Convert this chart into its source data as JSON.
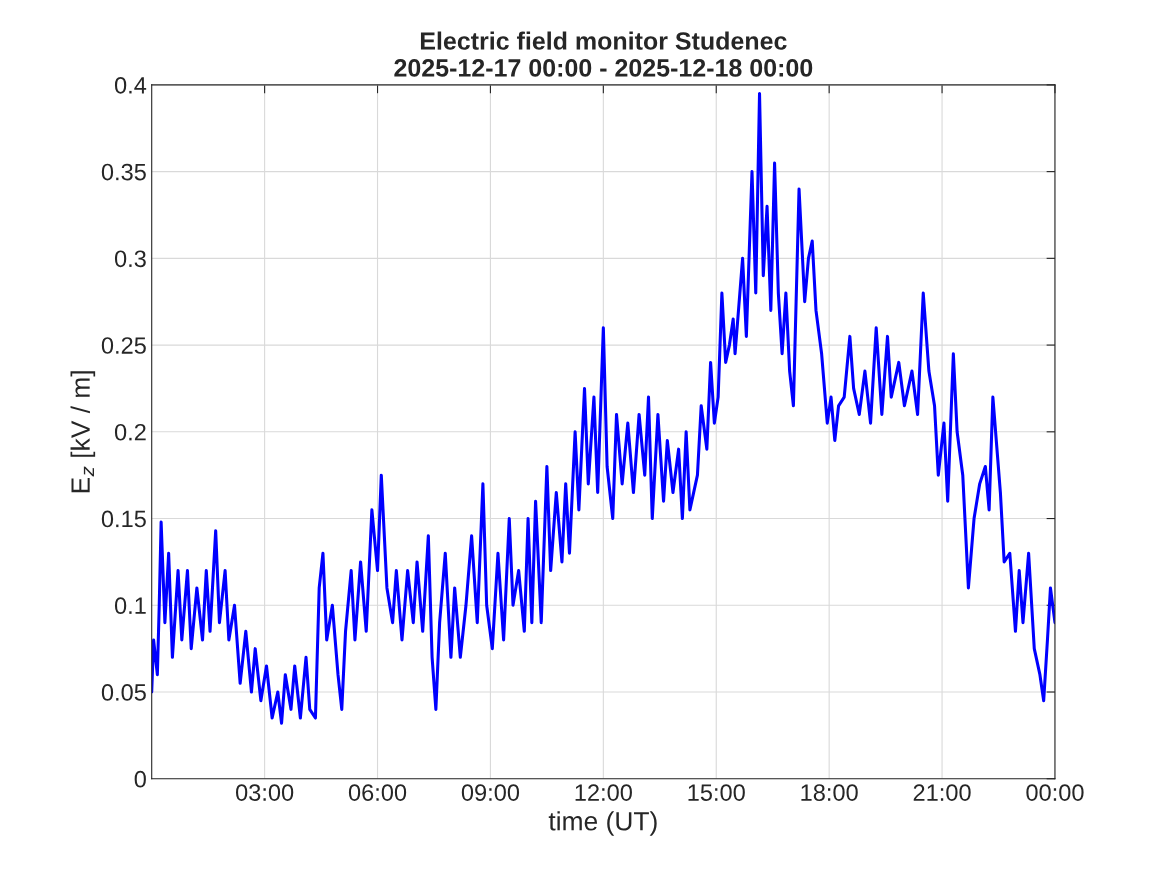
{
  "chart_data": {
    "type": "line",
    "title": "Electric field monitor Studenec\n2025-12-17 00:00 - 2025-12-18 00:00",
    "xlabel": "time (UT)",
    "ylabel": "E$_{z}$ [kV / m]",
    "xlim": [
      0,
      24
    ],
    "xticks": [
      {
        "value": 3,
        "label": "03:00"
      },
      {
        "value": 6,
        "label": "06:00"
      },
      {
        "value": 9,
        "label": "09:00"
      },
      {
        "value": 12,
        "label": "12:00"
      },
      {
        "value": 15,
        "label": "15:00"
      },
      {
        "value": 18,
        "label": "18:00"
      },
      {
        "value": 21,
        "label": "21:00"
      },
      {
        "value": 24,
        "label": "00:00"
      }
    ],
    "ylim": [
      0,
      0.4
    ],
    "yticks": [
      0,
      0.05,
      0.1,
      0.15,
      0.2,
      0.25,
      0.3,
      0.35,
      0.4
    ],
    "grid": true,
    "series": [
      {
        "color": "#0000ff",
        "x": [
          0.0,
          0.05,
          0.15,
          0.2,
          0.25,
          0.35,
          0.45,
          0.55,
          0.7,
          0.8,
          0.95,
          1.05,
          1.2,
          1.35,
          1.45,
          1.55,
          1.7,
          1.8,
          1.95,
          2.05,
          2.2,
          2.35,
          2.5,
          2.65,
          2.75,
          2.9,
          3.05,
          3.2,
          3.35,
          3.45,
          3.55,
          3.7,
          3.8,
          3.95,
          4.1,
          4.2,
          4.35,
          4.45,
          4.55,
          4.65,
          4.8,
          4.95,
          5.05,
          5.15,
          5.3,
          5.4,
          5.55,
          5.7,
          5.85,
          6.0,
          6.1,
          6.25,
          6.4,
          6.5,
          6.65,
          6.8,
          6.95,
          7.05,
          7.2,
          7.35,
          7.45,
          7.55,
          7.65,
          7.8,
          7.95,
          8.05,
          8.2,
          8.35,
          8.5,
          8.65,
          8.8,
          8.9,
          9.05,
          9.2,
          9.35,
          9.5,
          9.6,
          9.75,
          9.9,
          10.0,
          10.1,
          10.2,
          10.35,
          10.5,
          10.6,
          10.75,
          10.9,
          11.0,
          11.1,
          11.25,
          11.35,
          11.5,
          11.6,
          11.75,
          11.85,
          12.0,
          12.1,
          12.25,
          12.35,
          12.5,
          12.65,
          12.8,
          12.95,
          13.1,
          13.2,
          13.3,
          13.45,
          13.6,
          13.7,
          13.85,
          14.0,
          14.1,
          14.2,
          14.3,
          14.5,
          14.6,
          14.75,
          14.85,
          14.95,
          15.05,
          15.15,
          15.25,
          15.35,
          15.45,
          15.5,
          15.7,
          15.8,
          15.95,
          16.05,
          16.15,
          16.25,
          16.35,
          16.45,
          16.55,
          16.65,
          16.75,
          16.85,
          16.95,
          17.05,
          17.2,
          17.35,
          17.45,
          17.55,
          17.65,
          17.8,
          17.95,
          18.05,
          18.15,
          18.25,
          18.4,
          18.55,
          18.65,
          18.8,
          18.95,
          19.1,
          19.25,
          19.4,
          19.55,
          19.65,
          19.85,
          20.0,
          20.2,
          20.35,
          20.5,
          20.65,
          20.8,
          20.9,
          21.05,
          21.15,
          21.3,
          21.4,
          21.55,
          21.7,
          21.85,
          22.0,
          22.15,
          22.25,
          22.35,
          22.55,
          22.65,
          22.8,
          22.95,
          23.05,
          23.15,
          23.3,
          23.45,
          23.6,
          23.7,
          23.8,
          23.88,
          24.0
        ],
        "values": [
          0.05,
          0.08,
          0.06,
          0.1,
          0.148,
          0.09,
          0.13,
          0.07,
          0.12,
          0.08,
          0.12,
          0.075,
          0.11,
          0.08,
          0.12,
          0.085,
          0.143,
          0.09,
          0.12,
          0.08,
          0.1,
          0.055,
          0.085,
          0.05,
          0.075,
          0.045,
          0.065,
          0.035,
          0.05,
          0.032,
          0.06,
          0.04,
          0.065,
          0.035,
          0.07,
          0.04,
          0.035,
          0.11,
          0.13,
          0.08,
          0.1,
          0.06,
          0.04,
          0.085,
          0.12,
          0.08,
          0.125,
          0.085,
          0.155,
          0.12,
          0.175,
          0.11,
          0.09,
          0.12,
          0.08,
          0.12,
          0.09,
          0.125,
          0.085,
          0.14,
          0.07,
          0.04,
          0.09,
          0.13,
          0.07,
          0.11,
          0.07,
          0.1,
          0.14,
          0.09,
          0.17,
          0.1,
          0.075,
          0.13,
          0.08,
          0.15,
          0.1,
          0.12,
          0.085,
          0.15,
          0.09,
          0.16,
          0.09,
          0.18,
          0.12,
          0.165,
          0.125,
          0.17,
          0.13,
          0.2,
          0.155,
          0.225,
          0.17,
          0.22,
          0.165,
          0.26,
          0.18,
          0.15,
          0.21,
          0.17,
          0.205,
          0.165,
          0.21,
          0.175,
          0.22,
          0.15,
          0.21,
          0.16,
          0.195,
          0.165,
          0.19,
          0.15,
          0.2,
          0.155,
          0.175,
          0.215,
          0.19,
          0.24,
          0.205,
          0.22,
          0.28,
          0.24,
          0.25,
          0.265,
          0.245,
          0.3,
          0.255,
          0.35,
          0.28,
          0.395,
          0.29,
          0.33,
          0.27,
          0.355,
          0.28,
          0.245,
          0.28,
          0.235,
          0.215,
          0.34,
          0.275,
          0.3,
          0.31,
          0.27,
          0.245,
          0.205,
          0.22,
          0.195,
          0.215,
          0.22,
          0.255,
          0.225,
          0.21,
          0.235,
          0.205,
          0.26,
          0.21,
          0.255,
          0.22,
          0.24,
          0.215,
          0.235,
          0.21,
          0.28,
          0.235,
          0.215,
          0.175,
          0.205,
          0.16,
          0.245,
          0.2,
          0.175,
          0.11,
          0.15,
          0.17,
          0.18,
          0.155,
          0.22,
          0.165,
          0.125,
          0.13,
          0.085,
          0.12,
          0.09,
          0.13,
          0.075,
          0.06,
          0.045,
          0.08,
          0.11,
          0.09
        ]
      }
    ]
  }
}
